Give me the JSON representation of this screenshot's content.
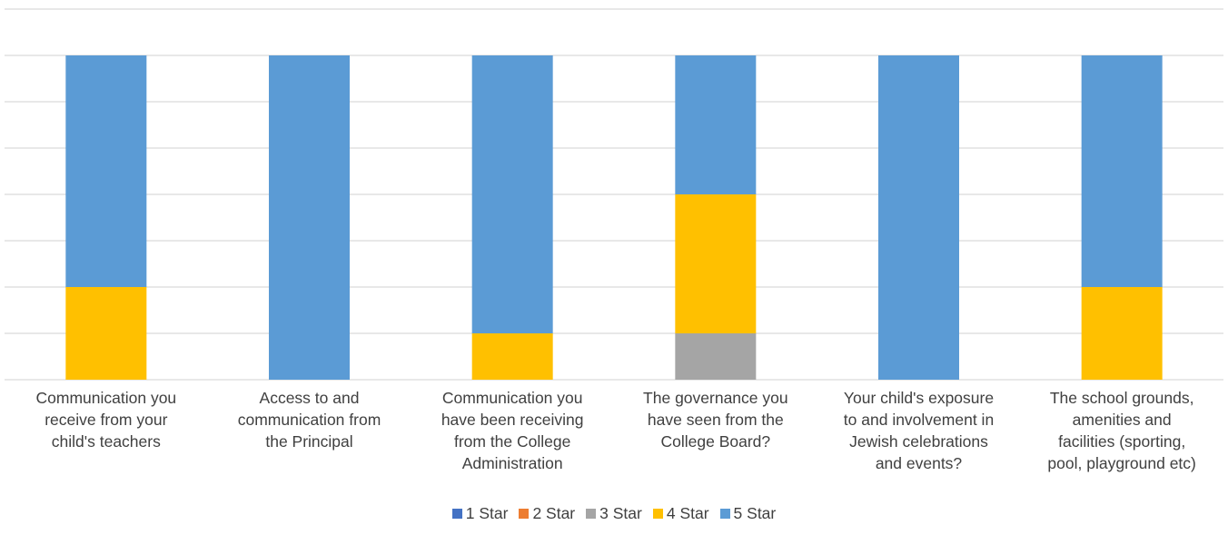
{
  "chart_data": {
    "type": "stacked-bar",
    "categories": [
      "Communication you receive from your child's teachers",
      "Access to and communication from the Principal",
      "Communication you have been receiving from the College Administration",
      "The governance you have seen from the College Board?",
      "Your child's exposure to and involvement in Jewish celebrations and events?",
      "The school grounds, amenities and facilities (sporting, pool, playground etc)"
    ],
    "category_lines": [
      [
        "Communication you",
        "receive from your",
        "child's teachers"
      ],
      [
        "Access to and",
        "communication from",
        "the Principal"
      ],
      [
        "Communication you",
        "have been receiving",
        "from the College",
        "Administration"
      ],
      [
        "The governance you",
        "have seen from the",
        "College Board?"
      ],
      [
        "Your child's exposure",
        "to and involvement in",
        "Jewish celebrations",
        "and events?"
      ],
      [
        "The school grounds,",
        "amenities and",
        "facilities (sporting,",
        "pool, playground etc)"
      ]
    ],
    "series": [
      {
        "name": "1 Star",
        "color": "#4472C4",
        "values": [
          0,
          0,
          0,
          0,
          0,
          0
        ]
      },
      {
        "name": "2 Star",
        "color": "#ED7D31",
        "values": [
          0,
          0,
          0,
          0,
          0,
          0
        ]
      },
      {
        "name": "3 Star",
        "color": "#A5A5A5",
        "values": [
          0,
          0,
          0,
          1,
          0,
          0
        ]
      },
      {
        "name": "4 Star",
        "color": "#FFC000",
        "values": [
          2,
          0,
          1,
          3,
          0,
          2
        ]
      },
      {
        "name": "5 Star",
        "color": "#5B9BD5",
        "values": [
          5,
          7,
          6,
          3,
          7,
          5
        ]
      }
    ],
    "ylim": [
      0,
      8
    ],
    "gridlines": true,
    "legend_position": "bottom"
  }
}
